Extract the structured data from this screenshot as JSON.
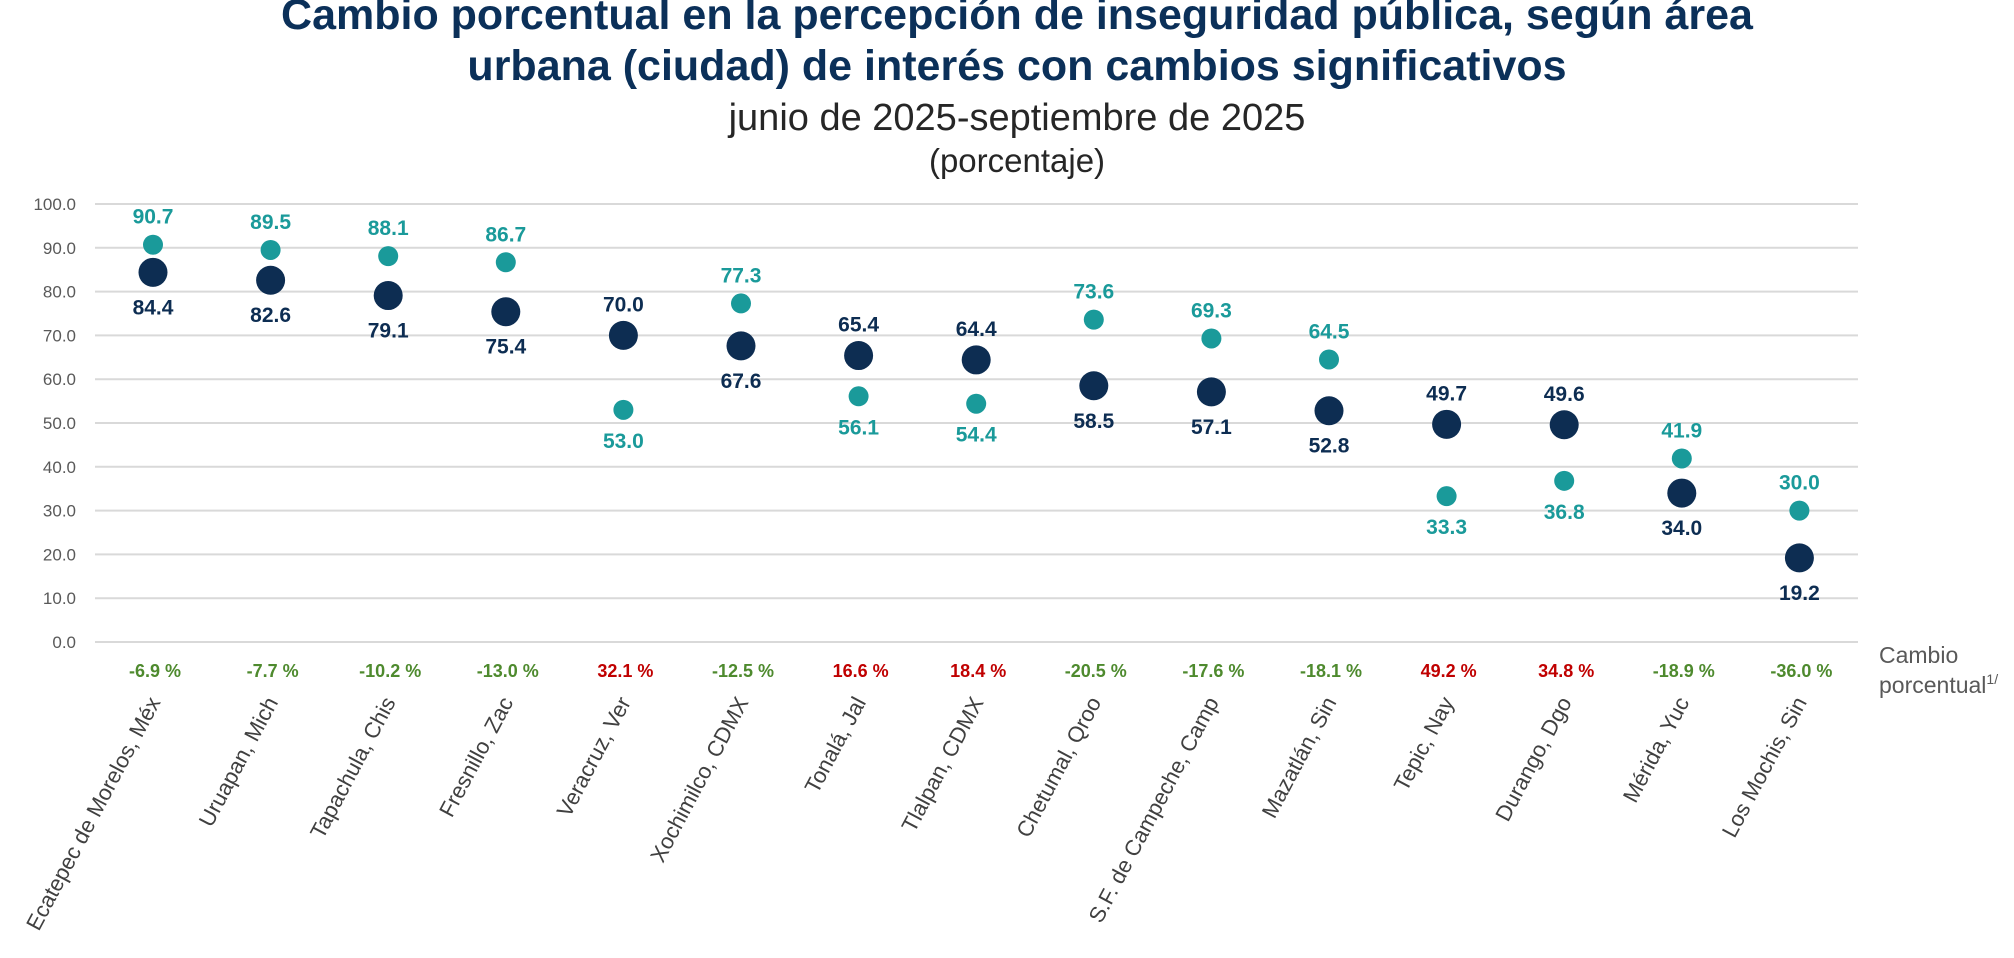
{
  "colors": {
    "series_2025_06": "#1a9a9a",
    "series_2025_09": "#0d2d52",
    "increase": "#c00000",
    "decrease": "#4e8a2e",
    "title": "#0b3059",
    "gridline": "#d9d9d9"
  },
  "chart_data": {
    "type": "scatter",
    "title": "Cambio porcentual en la percepción de inseguridad pública, según área urbana (ciudad) de interés con cambios significativos",
    "title_lines": [
      "Cambio porcentual en la percepción de inseguridad pública, según área",
      "urbana (ciudad) de interés con cambios significativos"
    ],
    "subtitle": "junio de 2025-septiembre de 2025",
    "unit_label": "(porcentaje)",
    "xlabel": "",
    "ylabel": "",
    "ylim": [
      0,
      100
    ],
    "yticks": [
      "0.0",
      "10.0",
      "20.0",
      "30.0",
      "40.0",
      "50.0",
      "60.0",
      "70.0",
      "80.0",
      "90.0",
      "100.0"
    ],
    "grid": true,
    "legend": null,
    "categories": [
      "Ecatepec de Morelos, Méx",
      "Uruapan, Mich",
      "Tapachula, Chis",
      "Fresnillo, Zac",
      "Veracruz, Ver",
      "Xochimilco, CDMX",
      "Tonalá, Jal",
      "Tlalpan, CDMX",
      "Chetumal, Qroo",
      "S.F. de Campeche, Camp",
      "Mazatlán, Sin",
      "Tepic, Nay",
      "Durango, Dgo",
      "Mérida, Yuc",
      "Los Mochis, Sin"
    ],
    "series": [
      {
        "name": "junio de 2025",
        "color_key": "series_2025_06",
        "values": [
          90.7,
          89.5,
          88.1,
          86.7,
          53.0,
          77.3,
          56.1,
          54.4,
          73.6,
          69.3,
          64.5,
          33.3,
          36.8,
          41.9,
          30.0
        ],
        "labels": [
          "90.7",
          "89.5",
          "88.1",
          "86.7",
          "53.0",
          "77.3",
          "56.1",
          "54.4",
          "73.6",
          "69.3",
          "64.5",
          "33.3",
          "36.8",
          "41.9",
          "30.0"
        ]
      },
      {
        "name": "septiembre de 2025",
        "color_key": "series_2025_09",
        "values": [
          84.4,
          82.6,
          79.1,
          75.4,
          70.0,
          67.6,
          65.4,
          64.4,
          58.5,
          57.1,
          52.8,
          49.7,
          49.6,
          34.0,
          19.2
        ],
        "labels": [
          "84.4",
          "82.6",
          "79.1",
          "75.4",
          "70.0",
          "67.6",
          "65.4",
          "64.4",
          "58.5",
          "57.1",
          "52.8",
          "49.7",
          "49.6",
          "34.0",
          "19.2"
        ]
      }
    ],
    "percent_change": {
      "label_line1": "Cambio",
      "label_line2": "porcentual",
      "label_sup": "1/",
      "values": [
        -6.9,
        -7.7,
        -10.2,
        -13.0,
        32.1,
        -12.5,
        16.6,
        18.4,
        -20.5,
        -17.6,
        -18.1,
        49.2,
        34.8,
        -18.9,
        -36.0
      ],
      "labels": [
        "-6.9 %",
        "-7.7 %",
        "-10.2 %",
        "-13.0 %",
        "32.1 %",
        "-12.5 %",
        "16.6 %",
        "18.4 %",
        "-20.5 %",
        "-17.6 %",
        "-18.1 %",
        "49.2 %",
        "34.8 %",
        "-18.9 %",
        "-36.0 %"
      ]
    }
  }
}
